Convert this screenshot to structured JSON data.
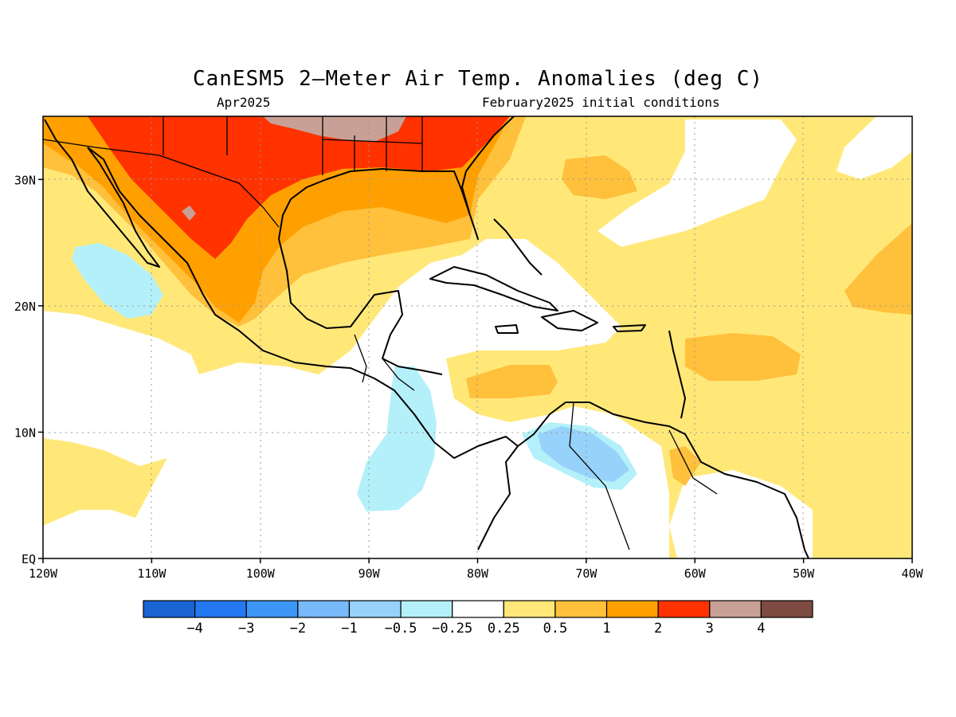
{
  "title": "CanESM5 2–Meter Air Temp. Anomalies (deg C)",
  "valid_month": "Apr2025",
  "init_conditions": "February2025 initial conditions",
  "map": {
    "lon_range": [
      -120,
      -40
    ],
    "lat_range": [
      0,
      35
    ],
    "lon_ticks": [
      {
        "value": -120,
        "label": "120W"
      },
      {
        "value": -110,
        "label": "110W"
      },
      {
        "value": -100,
        "label": "100W"
      },
      {
        "value": -90,
        "label": "90W"
      },
      {
        "value": -80,
        "label": "80W"
      },
      {
        "value": -70,
        "label": "70W"
      },
      {
        "value": -60,
        "label": "60W"
      },
      {
        "value": -50,
        "label": "50W"
      },
      {
        "value": -40,
        "label": "40W"
      }
    ],
    "lat_ticks": [
      {
        "value": 0,
        "label": "EQ"
      },
      {
        "value": 10,
        "label": "10N"
      },
      {
        "value": 20,
        "label": "20N"
      },
      {
        "value": 30,
        "label": "30N"
      }
    ],
    "grid": "dotted"
  },
  "colorbar": {
    "colors": [
      "#1964d2",
      "#2478f0",
      "#3c96f5",
      "#78b9fa",
      "#96d2fa",
      "#b4f0fa",
      "#ffffff",
      "#ffe878",
      "#ffc03c",
      "#ffa000",
      "#ff3200",
      "#c8a096",
      "#7d4b41"
    ],
    "labels": [
      "−4",
      "−3",
      "−2",
      "−1",
      "−0.5",
      "−0.25",
      "0.25",
      "0.5",
      "1",
      "2",
      "3",
      "4"
    ]
  }
}
